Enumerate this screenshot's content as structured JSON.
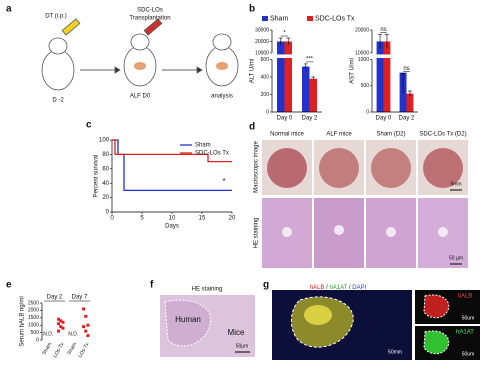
{
  "panel_labels": [
    "a",
    "b",
    "c",
    "d",
    "e",
    "f",
    "g"
  ],
  "diagram": {
    "injection": "DT (i.p.)",
    "transplant": [
      "SDC-LOs",
      "Transplantation"
    ],
    "timepoints": [
      "D -2",
      "ALF D0",
      "analysis"
    ]
  },
  "chart_data": [
    {
      "type": "bar",
      "ylabel": "ALT U/ml",
      "categories": [
        "Day 0",
        "Day 2"
      ],
      "series": [
        {
          "name": "Sham",
          "color": "#2233cc",
          "values": [
            20000,
            520
          ],
          "errors": [
            3000,
            30
          ]
        },
        {
          "name": "SDC-LOs Tx",
          "color": "#e02020",
          "values": [
            20000,
            380
          ],
          "errors": [
            3000,
            20
          ]
        }
      ],
      "ylim": [
        0,
        30000
      ],
      "ybreak": [
        600,
        10000
      ],
      "yticks": [
        0,
        200,
        400,
        600,
        10000,
        20000,
        30000
      ],
      "significance": [
        "*",
        "***"
      ],
      "legend": "top"
    },
    {
      "type": "bar",
      "ylabel": "AST U/ml",
      "categories": [
        "Day 0",
        "Day 2"
      ],
      "series": [
        {
          "color": "#2233cc",
          "values": [
            15000,
            750
          ],
          "errors": [
            3000,
            400
          ]
        },
        {
          "color": "#e02020",
          "values": [
            15000,
            350
          ],
          "errors": [
            3000,
            50
          ]
        }
      ],
      "ylim": [
        0,
        20000
      ],
      "ybreak": [
        1000,
        10000
      ],
      "yticks": [
        0,
        500,
        1000,
        10000,
        20000
      ],
      "significance": [
        "ns",
        "ns"
      ]
    },
    {
      "type": "line",
      "step": true,
      "xlabel": "Days",
      "ylabel": "Percent survival",
      "series": [
        {
          "name": "Sham",
          "color": "#2233cc",
          "x": [
            0,
            1,
            2,
            20
          ],
          "values": [
            100,
            80,
            30,
            30
          ]
        },
        {
          "name": "SDC-LOs Tx",
          "color": "#e02020",
          "x": [
            0,
            0.5,
            16,
            20
          ],
          "values": [
            100,
            80,
            70,
            70
          ]
        }
      ],
      "xlim": [
        0,
        20
      ],
      "xticks": [
        0,
        5,
        10,
        15,
        20
      ],
      "ylim": [
        0,
        100
      ],
      "yticks": [
        0,
        20,
        40,
        60,
        80,
        100
      ],
      "annotation": "*",
      "legend": "upper right"
    },
    {
      "type": "dot",
      "ylabel": "Serum hALB ng/ml",
      "categories": [
        "Sham",
        "LOs-Tx",
        "Sham",
        "LOs-Tx"
      ],
      "groups": [
        "Day 2",
        "Day 7"
      ],
      "color": "#e02020",
      "values": [
        null,
        [
          1400,
          1300,
          1200,
          1100,
          900,
          800,
          600
        ],
        null,
        [
          2100,
          1600,
          1000,
          900,
          600,
          300
        ]
      ],
      "value_labels": [
        "N.D.",
        null,
        "N.D.",
        null
      ],
      "ylim": [
        0,
        2500
      ],
      "yticks": [
        0,
        500,
        1000,
        1500,
        2000,
        2500
      ]
    }
  ],
  "image_d": {
    "columns": [
      "Normal mice",
      "ALF mice",
      "Sham (D2)",
      "SDC-LOs Tx (D2)"
    ],
    "rows": [
      "Macroscopic image",
      "HE staining"
    ],
    "scale_bars": [
      "5mm",
      "50 µm"
    ]
  },
  "image_f": {
    "title": "HE staining",
    "regions": [
      "Human",
      "Mice"
    ],
    "scale_bar": "50µm"
  },
  "image_g": {
    "channels": [
      "hALB",
      "hA1AT",
      "DAPI"
    ],
    "separator": " / ",
    "scale_bars": [
      "50mm",
      "50um",
      "50um"
    ]
  }
}
